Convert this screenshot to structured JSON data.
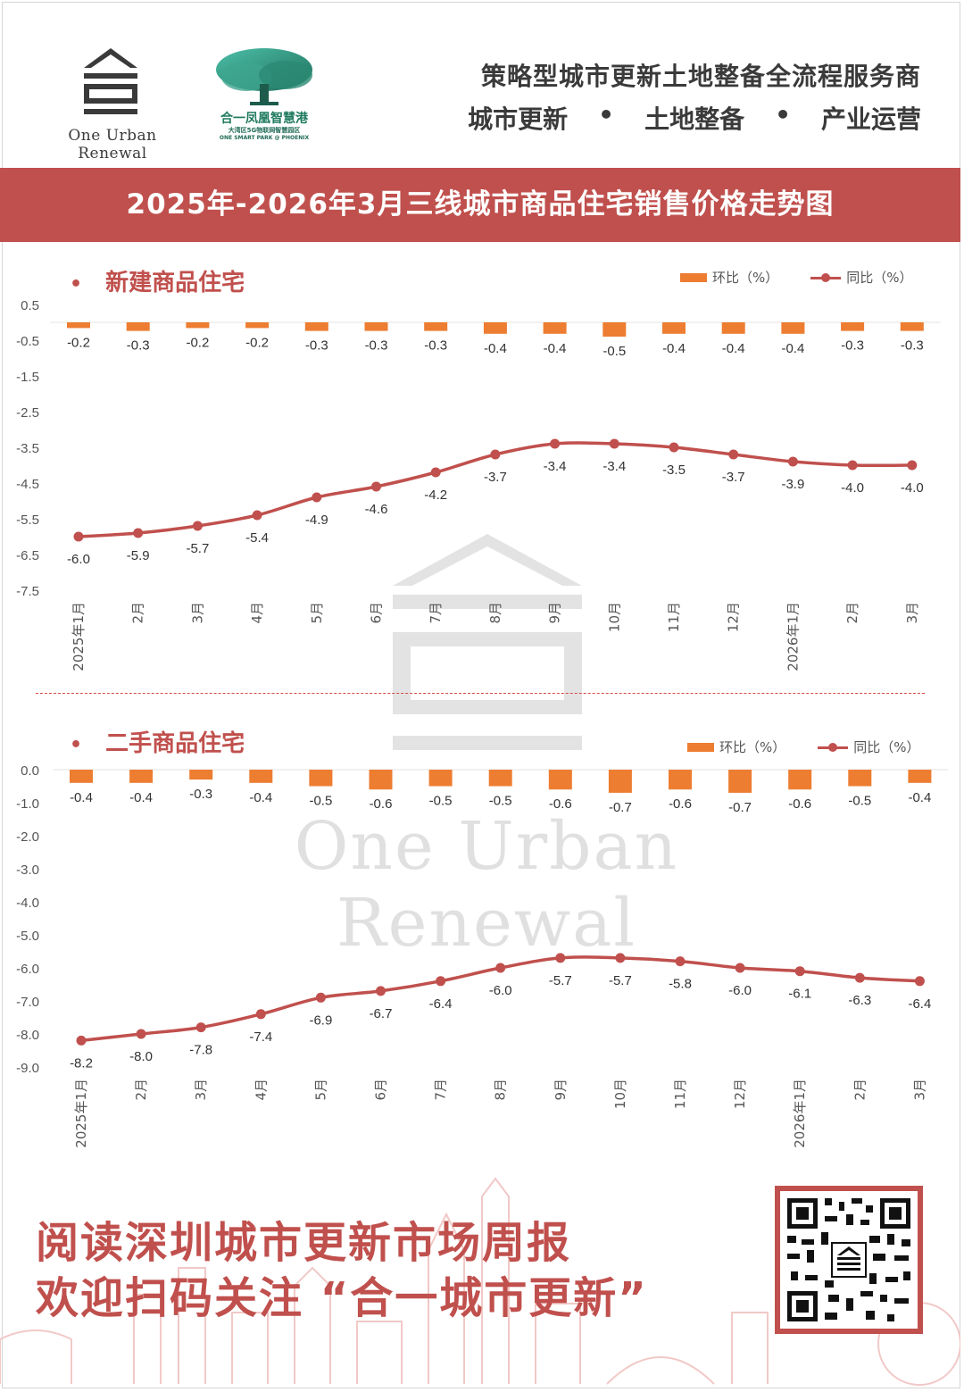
{
  "header": {
    "logo_left_text": "One Urban Renewal",
    "logo_right_name": "合一凤凰智慧港",
    "logo_right_sub1": "大湾区5G物联网智慧园区",
    "logo_right_sub2": "ONE SMART PARK @ PHOENIX",
    "slogan": "策略型城市更新土地整备全流程服务商",
    "services": [
      "城市更新",
      "土地整备",
      "产业运营"
    ],
    "services_sep": "•"
  },
  "banner_title": "2025年-2026年3月三线城市商品住宅销售价格走势图",
  "watermark_text": "One Urban Renewal",
  "legend": {
    "bar_label": "环比（%）",
    "line_label": "同比（%）"
  },
  "colors": {
    "accent": "#c0504d",
    "bar": "#ed7d31",
    "line": "#c0504d",
    "axis_text": "#555555"
  },
  "chart_data": [
    {
      "type": "bar+line",
      "title": "新建商品住宅",
      "categories": [
        "2025年1月",
        "2月",
        "3月",
        "4月",
        "5月",
        "6月",
        "7月",
        "8月",
        "9月",
        "10月",
        "11月",
        "12月",
        "2026年1月",
        "2月",
        "3月"
      ],
      "series": [
        {
          "name": "环比（%）",
          "type": "bar",
          "values": [
            -0.2,
            -0.3,
            -0.2,
            -0.2,
            -0.3,
            -0.3,
            -0.3,
            -0.4,
            -0.4,
            -0.5,
            -0.4,
            -0.4,
            -0.4,
            -0.3,
            -0.3
          ]
        },
        {
          "name": "同比（%）",
          "type": "line",
          "values": [
            -6.0,
            -5.9,
            -5.7,
            -5.4,
            -4.9,
            -4.6,
            -4.2,
            -3.7,
            -3.4,
            -3.4,
            -3.5,
            -3.7,
            -3.9,
            -4.0,
            -4.0
          ]
        }
      ],
      "ylim": [
        -7.5,
        0.5
      ],
      "yticks": [
        "0.5",
        "-0.5",
        "-1.5",
        "-2.5",
        "-3.5",
        "-4.5",
        "-5.5",
        "-6.5",
        "-7.5"
      ],
      "legend_position": "top-right"
    },
    {
      "type": "bar+line",
      "title": "二手商品住宅",
      "categories": [
        "2025年1月",
        "2月",
        "3月",
        "4月",
        "5月",
        "6月",
        "7月",
        "8月",
        "9月",
        "10月",
        "11月",
        "12月",
        "2026年1月",
        "2月",
        "3月"
      ],
      "series": [
        {
          "name": "环比（%）",
          "type": "bar",
          "values": [
            -0.4,
            -0.4,
            -0.3,
            -0.4,
            -0.5,
            -0.6,
            -0.5,
            -0.5,
            -0.6,
            -0.7,
            -0.6,
            -0.7,
            -0.6,
            -0.5,
            -0.4
          ]
        },
        {
          "name": "同比（%）",
          "type": "line",
          "values": [
            -8.2,
            -8.0,
            -7.8,
            -7.4,
            -6.9,
            -6.7,
            -6.4,
            -6.0,
            -5.7,
            -5.7,
            -5.8,
            -6.0,
            -6.1,
            -6.3,
            -6.4
          ]
        }
      ],
      "ylim": [
        -9.0,
        0.0
      ],
      "yticks": [
        "0.0",
        "-1.0",
        "-2.0",
        "-3.0",
        "-4.0",
        "-5.0",
        "-6.0",
        "-7.0",
        "-8.0",
        "-9.0"
      ],
      "legend_position": "top-right"
    }
  ],
  "footer": {
    "promo_line1": "阅读深圳城市更新市场周报",
    "promo_line2": "欢迎扫码关注 “合一城市更新”"
  }
}
